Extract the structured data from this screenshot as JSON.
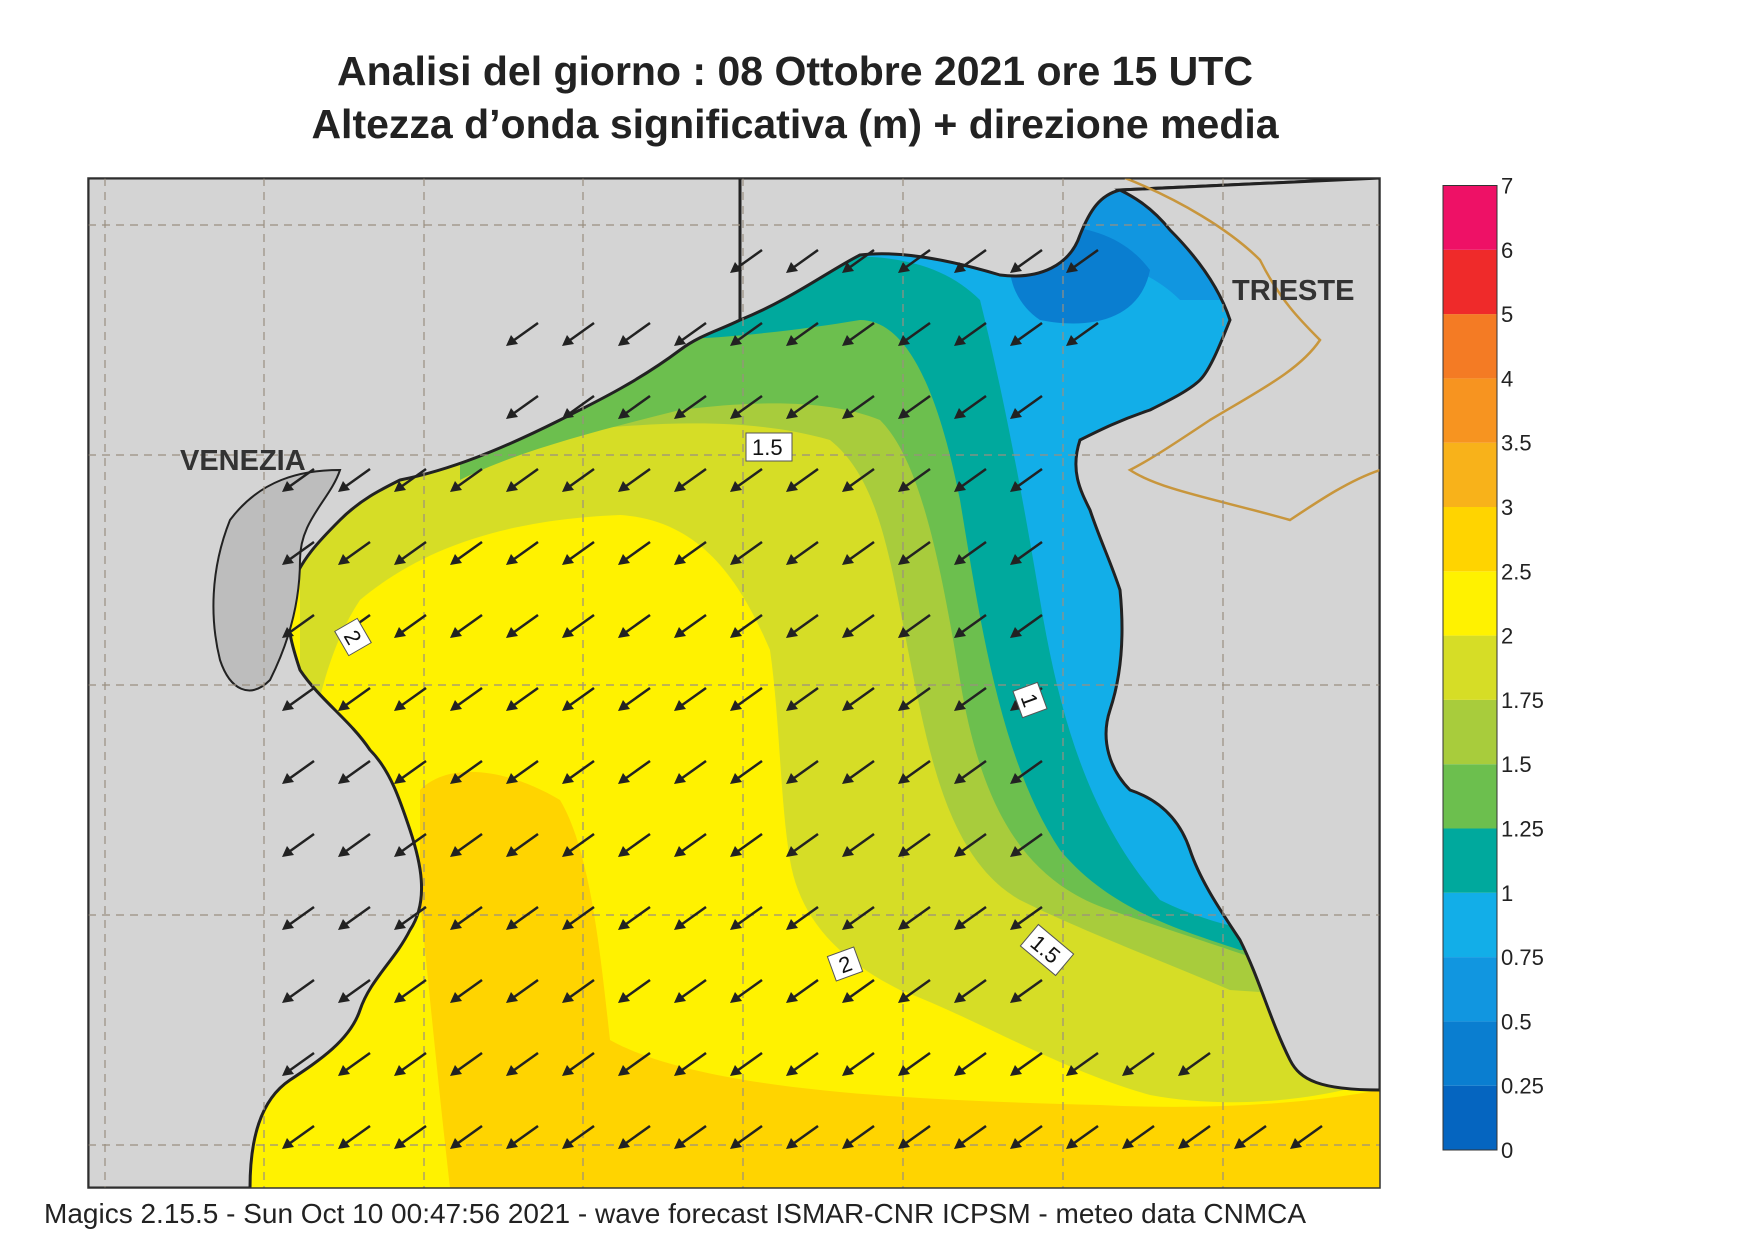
{
  "title": {
    "line1": "Analisi del giorno :  08  Ottobre  2021    ore 15 UTC",
    "line2": "Altezza d’onda significativa (m) + direzione media"
  },
  "map": {
    "labels": {
      "venezia": "VENEZIA",
      "trieste": "TRIESTE"
    },
    "contour_labels": [
      {
        "id": "c15a",
        "text": "1.5"
      },
      {
        "id": "c2a",
        "text": "2"
      },
      {
        "id": "c1",
        "text": "1"
      },
      {
        "id": "c15b",
        "text": "1.5"
      },
      {
        "id": "c2b",
        "text": "2"
      }
    ],
    "land_color": "#d4d4d4",
    "arrow_direction": "south-west",
    "grid": true
  },
  "legend": {
    "ticks": [
      "0",
      "0.25",
      "0.5",
      "0.75",
      "1",
      "1.25",
      "1.5",
      "1.75",
      "2",
      "2.5",
      "3",
      "3.5",
      "4",
      "5",
      "6",
      "7"
    ],
    "colors": [
      "#0565c0",
      "#0a7ed0",
      "#1196e0",
      "#12aee8",
      "#00a99d",
      "#6cbf4e",
      "#a8cc3c",
      "#d6dd26",
      "#fff200",
      "#ffd400",
      "#f8b21a",
      "#f79420",
      "#f47b24",
      "#ef2a2a",
      "#ee1166"
    ]
  },
  "footer": {
    "text": "Magics 2.15.5 - Sun Oct 10 00:47:56 2021 - wave forecast  ISMAR-CNR  ICPSM - meteo data   CNMCA"
  }
}
